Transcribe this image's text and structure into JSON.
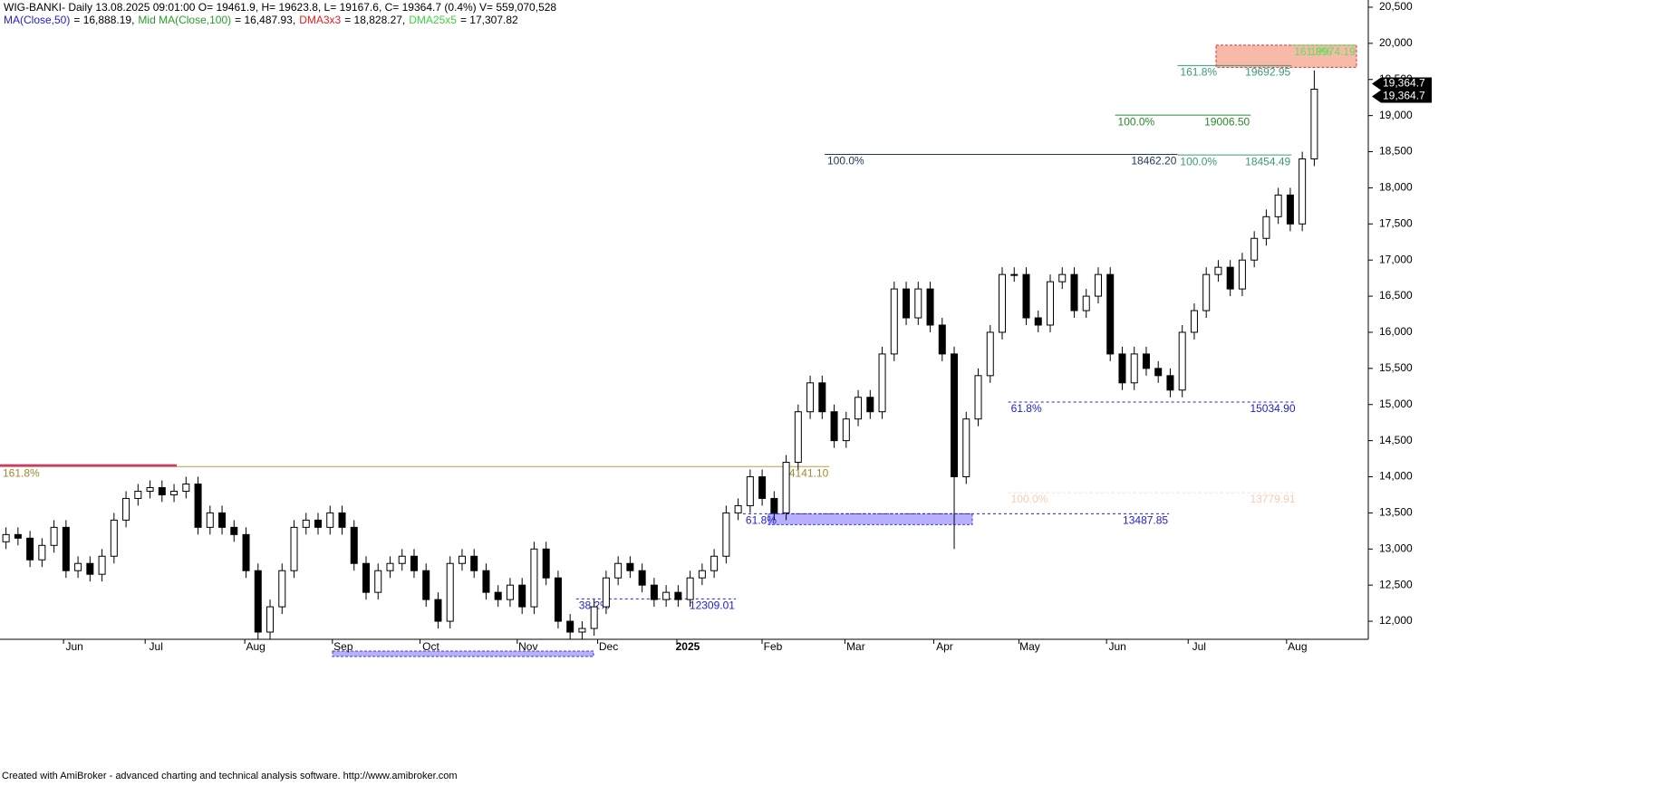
{
  "header": {
    "title": "WIG-BANKI- Daily 13.08.2025 09:01:00 O= 19461.9, H= 19623.8, L= 19167.6, C= 19364.7 (0.4%) V= 559,070,528",
    "indicators": [
      {
        "name": "MA(Close,50)",
        "text": "= 16,888.19,",
        "color": "#2020d0"
      },
      {
        "name": "Mid MA(Close,100)",
        "text": "= 16,487.93,",
        "color": "#2a9a2a"
      },
      {
        "name": "DMA3x3",
        "text": "= 18,828.27,",
        "color": "#e02020"
      },
      {
        "name": "DMA25x5",
        "text": "= 17,307.82",
        "color": "#40d040"
      }
    ]
  },
  "footer": "Created with AmiBroker - advanced charting and technical analysis software. http://www.amibroker.com",
  "chart_data": {
    "type": "candlestick",
    "up_color": "#ffffff",
    "down_color": "#000000",
    "open": [
      13100,
      13200,
      13150,
      12850,
      13050,
      13300,
      12700,
      12800,
      12650,
      12900,
      13400,
      13700,
      13800,
      13850,
      13750,
      13800,
      13900,
      13300,
      13500,
      13300,
      13200,
      12700,
      11850,
      12200,
      12700,
      13300,
      13400,
      13300,
      13500,
      13300,
      12800,
      12400,
      12700,
      12800,
      12900,
      12700,
      12300,
      12000,
      12800,
      12900,
      12700,
      12400,
      12300,
      12500,
      12200,
      13000,
      12600,
      12000,
      11850,
      11900,
      12200,
      12600,
      12800,
      12700,
      12500,
      12300,
      12400,
      12300,
      12600,
      12700,
      12900,
      13500,
      13600,
      14000,
      13700,
      13500,
      14200,
      14900,
      15300,
      14900,
      14500,
      14800,
      15100,
      14900,
      15700,
      16600,
      16200,
      16600,
      16100,
      15700,
      14000,
      14800,
      15400,
      16000,
      16800,
      16800,
      16200,
      16100,
      16700,
      16800,
      16300,
      16500,
      16800,
      15700,
      15300,
      15700,
      15500,
      15400,
      15200,
      16000,
      16300,
      16800,
      16900,
      16600,
      17000,
      17300,
      17600,
      17900,
      17500,
      18400
    ],
    "high": [
      13300,
      13300,
      13250,
      13150,
      13400,
      13400,
      12900,
      12900,
      13000,
      13500,
      13800,
      13900,
      13950,
      13950,
      13900,
      14000,
      14000,
      13600,
      13600,
      13400,
      13300,
      12800,
      12300,
      12800,
      13400,
      13500,
      13500,
      13600,
      13600,
      13400,
      12900,
      12800,
      12900,
      13000,
      13000,
      12800,
      12400,
      12900,
      13000,
      13000,
      12800,
      12500,
      12600,
      12600,
      13100,
      13100,
      12700,
      12100,
      12000,
      12300,
      12700,
      12900,
      12900,
      12800,
      12600,
      12500,
      12500,
      12700,
      12800,
      13000,
      13600,
      13700,
      14100,
      14100,
      13800,
      14300,
      15000,
      15400,
      15400,
      15000,
      14900,
      15200,
      15200,
      15800,
      16700,
      16700,
      16700,
      16700,
      16200,
      15800,
      14900,
      15500,
      16100,
      16900,
      16900,
      16900,
      16300,
      16800,
      16900,
      16900,
      16600,
      16900,
      16900,
      15800,
      15800,
      15800,
      15600,
      15500,
      16100,
      16400,
      16900,
      17000,
      17000,
      17100,
      17400,
      17700,
      18000,
      18000,
      18500,
      19624
    ],
    "low": [
      13000,
      13050,
      12750,
      12750,
      12950,
      12600,
      12600,
      12550,
      12550,
      12800,
      13300,
      13600,
      13700,
      13650,
      13650,
      13700,
      13200,
      13200,
      13200,
      13100,
      12600,
      11750,
      11750,
      12100,
      12600,
      13200,
      13200,
      13200,
      13200,
      12700,
      12300,
      12300,
      12600,
      12700,
      12600,
      12200,
      11900,
      11900,
      12700,
      12600,
      12300,
      12200,
      12200,
      12100,
      12100,
      12500,
      11900,
      11750,
      11750,
      11800,
      12100,
      12500,
      12600,
      12400,
      12200,
      12200,
      12200,
      12200,
      12500,
      12600,
      12800,
      13400,
      13500,
      13600,
      13400,
      13400,
      14100,
      14800,
      14800,
      14400,
      14400,
      14700,
      14800,
      14800,
      15600,
      16100,
      16100,
      16000,
      15600,
      13000,
      13900,
      14700,
      15300,
      15900,
      16700,
      16100,
      16000,
      16000,
      16600,
      16200,
      16200,
      16400,
      15600,
      15200,
      15200,
      15400,
      15300,
      15100,
      15100,
      15900,
      16200,
      16700,
      16500,
      16500,
      16900,
      17200,
      17500,
      17400,
      17400,
      18300
    ],
    "close": [
      13200,
      13150,
      12850,
      13050,
      13300,
      12700,
      12800,
      12650,
      12900,
      13400,
      13700,
      13800,
      13850,
      13750,
      13800,
      13900,
      13300,
      13500,
      13300,
      13200,
      12700,
      11850,
      12200,
      12700,
      13300,
      13400,
      13300,
      13500,
      13300,
      12800,
      12400,
      12700,
      12800,
      12900,
      12700,
      12300,
      12000,
      12800,
      12900,
      12700,
      12400,
      12300,
      12500,
      12200,
      13000,
      12600,
      12000,
      11850,
      11900,
      12200,
      12600,
      12800,
      12700,
      12500,
      12300,
      12400,
      12300,
      12600,
      12700,
      12900,
      13500,
      13600,
      14000,
      13700,
      13500,
      14200,
      14900,
      15300,
      14900,
      14500,
      14800,
      15100,
      14900,
      15700,
      16600,
      16200,
      16600,
      16100,
      15700,
      14000,
      14800,
      15400,
      16000,
      16800,
      16800,
      16200,
      16100,
      16700,
      16800,
      16300,
      16500,
      16800,
      15700,
      15300,
      15700,
      15500,
      15400,
      15200,
      16000,
      16300,
      16800,
      16900,
      16600,
      17000,
      17300,
      17600,
      17900,
      17500,
      18400,
      19365
    ],
    "xlim": [
      -0.5,
      113.5
    ],
    "xticks": [
      {
        "value": 5.7,
        "label": "Jun"
      },
      {
        "value": 12.5,
        "label": "Jul"
      },
      {
        "value": 20.8,
        "label": "Aug"
      },
      {
        "value": 28.1,
        "label": "Sep"
      },
      {
        "value": 35.4,
        "label": "Oct"
      },
      {
        "value": 43.5,
        "label": "Nov"
      },
      {
        "value": 50.2,
        "label": "Dec"
      },
      {
        "value": 56.8,
        "label": "2025"
      },
      {
        "value": 63.9,
        "label": "Feb"
      },
      {
        "value": 70.8,
        "label": "Mar"
      },
      {
        "value": 78.2,
        "label": "Apr"
      },
      {
        "value": 85.3,
        "label": "May"
      },
      {
        "value": 92.6,
        "label": "Jun"
      },
      {
        "value": 99.4,
        "label": "Jul"
      },
      {
        "value": 107.6,
        "label": "Aug"
      }
    ],
    "ylim": [
      11750,
      20600
    ],
    "yticks": [
      {
        "value": 12000,
        "label": "12,000"
      },
      {
        "value": 12500,
        "label": "12,500"
      },
      {
        "value": 13000,
        "label": "13,000"
      },
      {
        "value": 13500,
        "label": "13,500"
      },
      {
        "value": 14000,
        "label": "14,000"
      },
      {
        "value": 14500,
        "label": "14,500"
      },
      {
        "value": 15000,
        "label": "15,000"
      },
      {
        "value": 15500,
        "label": "15,500"
      },
      {
        "value": 16000,
        "label": "16,000"
      },
      {
        "value": 16500,
        "label": "16,500"
      },
      {
        "value": 17000,
        "label": "17,000"
      },
      {
        "value": 17500,
        "label": "17,500"
      },
      {
        "value": 18000,
        "label": "18,000"
      },
      {
        "value": 18500,
        "label": "18,500"
      },
      {
        "value": 19000,
        "label": "19,000"
      },
      {
        "value": 19500,
        "label": "19,500"
      },
      {
        "value": 20000,
        "label": "20,000"
      },
      {
        "value": 20500,
        "label": "20,500"
      }
    ],
    "last_price": {
      "value": 19364.7,
      "label": "19,364.7"
    },
    "levels": [
      {
        "name": "161.8%",
        "value": 14141.1,
        "label": "14141.10",
        "from": -0.5,
        "to": 68.6,
        "color": "#b8a040",
        "text_color": "#a08830"
      },
      {
        "name": "100.0%",
        "value": 18462.2,
        "label": "18462.20",
        "from": 68.2,
        "to": 97.6,
        "color": "#1a3a5c",
        "text_color": "#1a3a5c"
      },
      {
        "name": "100.0%",
        "value": 18454.49,
        "label": "18454.49",
        "from": 97.6,
        "to": 107.1,
        "color": "#3a9a7a",
        "text_color": "#3a9a7a"
      },
      {
        "name": "100.0%",
        "value": 19006.5,
        "label": "19006.50",
        "from": 92.4,
        "to": 103.7,
        "color": "#2a8a2a",
        "text_color": "#2a8a2a"
      },
      {
        "name": "161.8%",
        "value": 19692.95,
        "label": "19692.95",
        "from": 97.6,
        "to": 107.1,
        "color": "#3a9a7a",
        "text_color": "#3a9a7a"
      },
      {
        "name": "161.8%",
        "value": 19974.19,
        "label": "19974.19",
        "from": 107.1,
        "to": 112.5,
        "color": "#60e060",
        "text_color": "#60e060"
      },
      {
        "name": "61.8%",
        "value": 15034.9,
        "label": "15034.90",
        "from": 83.5,
        "to": 107.5,
        "color": "#2020d0",
        "text_color": "#2020d0",
        "dashed": true
      },
      {
        "name": "100.0%",
        "value": 13779.91,
        "label": "13779.91",
        "from": 83.5,
        "to": 107.5,
        "color": "#f8dccc",
        "text_color": "#f3cdb8",
        "dashed": true
      },
      {
        "name": "61.8%",
        "value": 13487.85,
        "label": "13487.85",
        "from": 61.4,
        "to": 96.9,
        "color": "#2020d0",
        "text_color": "#2020d0",
        "dashed": true
      },
      {
        "name": "38.2%",
        "value": 12309.01,
        "label": "12309.01",
        "from": 47.5,
        "to": 60.8,
        "color": "#2020d0",
        "text_color": "#2020d0",
        "dashed": true
      }
    ]
  }
}
